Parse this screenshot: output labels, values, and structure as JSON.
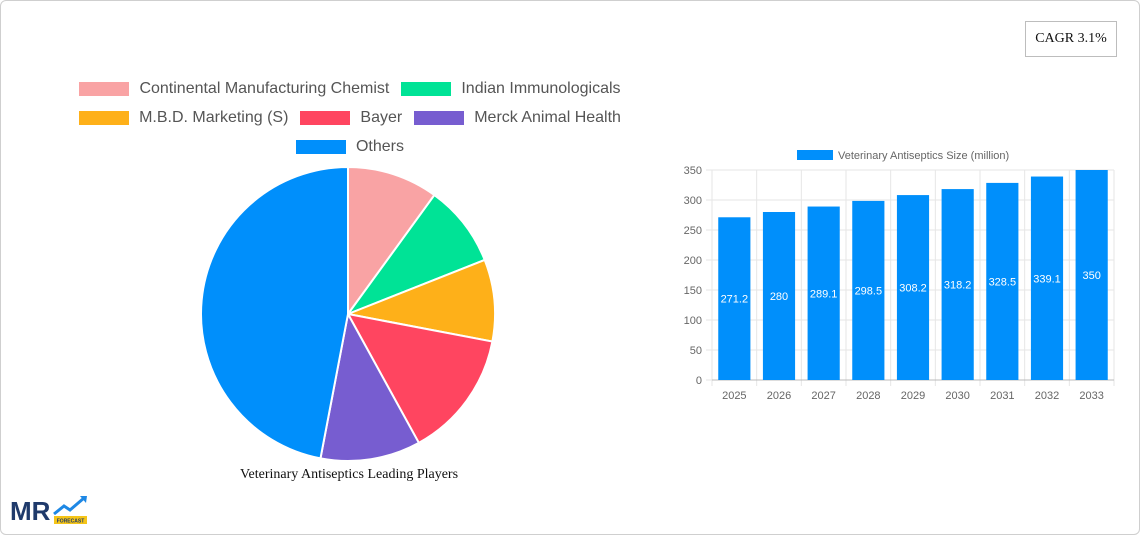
{
  "cagr": {
    "label": "CAGR 3.1%"
  },
  "pie": {
    "title": "Veterinary Antiseptics Leading Players",
    "chart_data": {
      "type": "pie",
      "title": "Veterinary Antiseptics Leading Players",
      "slices": [
        {
          "name": "Continental Manufacturing Chemist",
          "value": 10,
          "color": "#f9a3a4"
        },
        {
          "name": "Indian Immunologicals",
          "value": 9,
          "color": "#00e396"
        },
        {
          "name": "M.B.D. Marketing (S)",
          "value": 9,
          "color": "#feb019"
        },
        {
          "name": "Bayer",
          "value": 14,
          "color": "#ff4560"
        },
        {
          "name": "Merck Animal Health",
          "value": 11,
          "color": "#775dd0"
        },
        {
          "name": "Others",
          "value": 47,
          "color": "#008ffb"
        }
      ],
      "legend_placement": "top"
    }
  },
  "bar": {
    "chart_data": {
      "type": "bar",
      "categories": [
        "2025",
        "2026",
        "2027",
        "2028",
        "2029",
        "2030",
        "2031",
        "2032",
        "2033"
      ],
      "series": [
        {
          "name": "Veterinary Antiseptics Size (million)",
          "values": [
            271.2,
            280,
            289.1,
            298.5,
            308.2,
            318.2,
            328.5,
            339.1,
            350
          ],
          "color": "#008ffb"
        }
      ],
      "ylim": [
        0,
        350
      ],
      "yticks": [
        0,
        50,
        100,
        150,
        200,
        250,
        300,
        350
      ],
      "grid": true,
      "legend_placement": "top"
    }
  },
  "logo": {
    "text": "MR",
    "subtext": "FORECAST"
  }
}
